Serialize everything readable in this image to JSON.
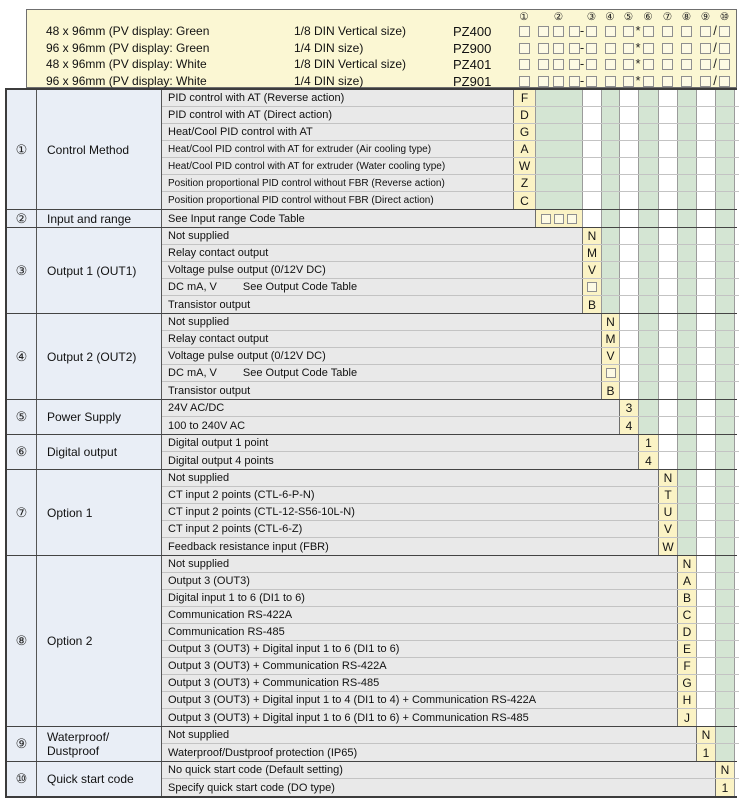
{
  "header": {
    "column_numbers": [
      "①",
      "②",
      "③",
      "④",
      "⑤",
      "⑥",
      "⑦",
      "⑧",
      "⑨",
      "⑩"
    ],
    "models": [
      {
        "size": "48 x 96mm (PV display: Green",
        "din": "1/8 DIN Vertical size)",
        "model": "PZ400"
      },
      {
        "size": "96 x 96mm (PV display: Green",
        "din": "1/4 DIN size)",
        "model": "PZ900"
      },
      {
        "size": "48 x 96mm (PV display: White",
        "din": "1/8 DIN Vertical size)",
        "model": "PZ401"
      },
      {
        "size": "96 x 96mm (PV display: White",
        "din": "1/4 DIN size)",
        "model": "PZ901"
      }
    ],
    "separators": {
      "hyphen": "-",
      "asterisk": "*",
      "slash": "/"
    }
  },
  "sections": [
    {
      "num": "①",
      "category": "Control Method",
      "col": 1,
      "rows": [
        {
          "label": "PID control with AT (Reverse action)",
          "code": "F"
        },
        {
          "label": "PID control with AT (Direct action)",
          "code": "D"
        },
        {
          "label": "Heat/Cool PID control with AT",
          "code": "G"
        },
        {
          "label": "Heat/Cool PID control with AT for extruder (Air cooling type)",
          "code": "A"
        },
        {
          "label": "Heat/Cool PID control with AT for extruder (Water cooling type)",
          "code": "W"
        },
        {
          "label": "Position proportional PID control without FBR (Reverse action)",
          "code": "Z"
        },
        {
          "label": "Position proportional PID control without FBR (Direct action)",
          "code": "C"
        }
      ]
    },
    {
      "num": "②",
      "category": "Input and range",
      "col": 2,
      "rows": [
        {
          "label": "See Input range Code Table",
          "code": "",
          "boxes": 3
        }
      ]
    },
    {
      "num": "③",
      "category": "Output 1 (OUT1)",
      "col": 3,
      "rows": [
        {
          "label": "Not supplied",
          "code": "N"
        },
        {
          "label": "Relay contact output",
          "code": "M"
        },
        {
          "label": "Voltage pulse output (0/12V DC)",
          "code": "V"
        },
        {
          "label": "DC mA, V",
          "note": "See Output Code Table",
          "code": "",
          "boxes": 1
        },
        {
          "label": "Transistor output",
          "code": "B"
        }
      ]
    },
    {
      "num": "④",
      "category": "Output 2 (OUT2)",
      "col": 4,
      "rows": [
        {
          "label": "Not supplied",
          "code": "N"
        },
        {
          "label": "Relay contact output",
          "code": "M"
        },
        {
          "label": "Voltage pulse output (0/12V DC)",
          "code": "V"
        },
        {
          "label": "DC mA, V",
          "note": "See Output Code Table",
          "code": "",
          "boxes": 1
        },
        {
          "label": "Transistor output",
          "code": "B"
        }
      ]
    },
    {
      "num": "⑤",
      "category": "Power Supply",
      "col": 5,
      "rows": [
        {
          "label": "24V AC/DC",
          "code": "3"
        },
        {
          "label": "100 to 240V AC",
          "code": "4"
        }
      ]
    },
    {
      "num": "⑥",
      "category": "Digital output",
      "col": 6,
      "rows": [
        {
          "label": "Digital output 1 point",
          "code": "1"
        },
        {
          "label": "Digital output 4 points",
          "code": "4"
        }
      ]
    },
    {
      "num": "⑦",
      "category": "Option 1",
      "col": 7,
      "rows": [
        {
          "label": "Not supplied",
          "code": "N"
        },
        {
          "label": "CT input 2 points (CTL-6-P-N)",
          "code": "T"
        },
        {
          "label": "CT input 2 points (CTL-12-S56-10L-N)",
          "code": "U"
        },
        {
          "label": "CT input 2 points (CTL-6-Z)",
          "code": "V"
        },
        {
          "label": "Feedback resistance input (FBR)",
          "code": "W"
        }
      ]
    },
    {
      "num": "⑧",
      "category": "Option 2",
      "col": 8,
      "rows": [
        {
          "label": "Not supplied",
          "code": "N"
        },
        {
          "label": "Output 3 (OUT3)",
          "code": "A"
        },
        {
          "label": "Digital input 1 to 6 (DI1 to 6)",
          "code": "B"
        },
        {
          "label": "Communication RS-422A",
          "code": "C"
        },
        {
          "label": "Communication RS-485",
          "code": "D"
        },
        {
          "label": "Output 3 (OUT3) + Digital input 1 to 6 (DI1 to 6)",
          "code": "E"
        },
        {
          "label": "Output 3 (OUT3) + Communication RS-422A",
          "code": "F"
        },
        {
          "label": "Output 3 (OUT3) + Communication RS-485",
          "code": "G"
        },
        {
          "label": "Output 3 (OUT3) + Digital input 1 to 4 (DI1 to 4) + Communication RS-422A",
          "code": "H"
        },
        {
          "label": "Output 3 (OUT3) + Digital input 1 to 6 (DI1 to 6) + Communication RS-485",
          "code": "J"
        }
      ]
    },
    {
      "num": "⑨",
      "category": "Waterproof/\nDustproof",
      "col": 9,
      "rows": [
        {
          "label": "Not supplied",
          "code": "N"
        },
        {
          "label": "Waterproof/Dustproof protection (IP65)",
          "code": "1"
        }
      ]
    },
    {
      "num": "⑩",
      "category": "Quick start code",
      "col": 10,
      "rows": [
        {
          "label": "No quick start code (Default setting)",
          "code": "N"
        },
        {
          "label": "Specify quick start code (DO type)",
          "code": "1"
        }
      ]
    }
  ],
  "colors": {
    "header_bg": "#FBF7D3",
    "code_cell_bg": "#FBF3C5",
    "band_green": "#D4E5D3",
    "row_gray": "#E9E9E9",
    "left_col_bg": "#E9EEF6"
  }
}
